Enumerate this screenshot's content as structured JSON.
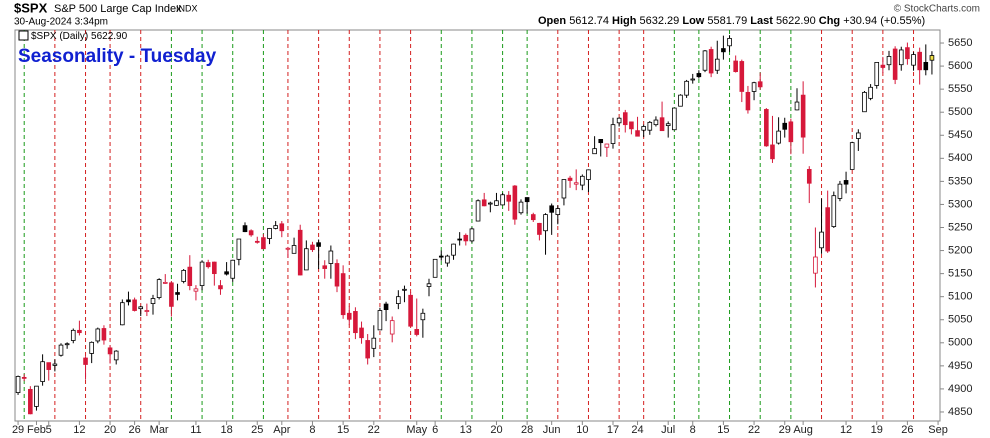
{
  "header": {
    "symbol": "$SPX",
    "name": "S&P 500 Large Cap Index",
    "exchange": "INDX",
    "date": "30-Aug-2024 3:34pm",
    "open_label": "Open",
    "open": "5612.74",
    "high_label": "High",
    "high": "5632.29",
    "low_label": "Low",
    "low": "5581.79",
    "last_label": "Last",
    "last": "5622.90",
    "chg_label": "Chg",
    "chg": "+30.94 (+0.55%)",
    "copyright": "© StockCharts.com"
  },
  "chart_data": {
    "type": "candlestick",
    "title": "Seasonality - Tuesday",
    "legend": "$SPX (Daily)",
    "colors": {
      "up": "#000000",
      "down": "#d6183a",
      "last": "#f2e24a"
    },
    "categories": [
      "Jan 29",
      "Jan 30",
      "Jan 31",
      "Feb 1",
      "Feb 2",
      "Feb 5",
      "Feb 6",
      "Feb 7",
      "Feb 8",
      "Feb 9",
      "Feb 12",
      "Feb 13",
      "Feb 14",
      "Feb 15",
      "Feb 16",
      "Feb 20",
      "Feb 21",
      "Feb 22",
      "Feb 23",
      "Feb 26",
      "Feb 27",
      "Feb 28",
      "Feb 29",
      "Mar 1",
      "Mar 4",
      "Mar 5",
      "Mar 6",
      "Mar 7",
      "Mar 8",
      "Mar 11",
      "Mar 12",
      "Mar 13",
      "Mar 14",
      "Mar 15",
      "Mar 18",
      "Mar 19",
      "Mar 20",
      "Mar 21",
      "Mar 22",
      "Mar 25",
      "Mar 26",
      "Mar 27",
      "Mar 28",
      "Apr 1",
      "Apr 2",
      "Apr 3",
      "Apr 4",
      "Apr 5",
      "Apr 8",
      "Apr 9",
      "Apr 10",
      "Apr 11",
      "Apr 12",
      "Apr 15",
      "Apr 16",
      "Apr 17",
      "Apr 18",
      "Apr 19",
      "Apr 22",
      "Apr 23",
      "Apr 24",
      "Apr 25",
      "Apr 26",
      "Apr 29",
      "Apr 30",
      "May 1",
      "May 2",
      "May 3",
      "May 6",
      "May 7",
      "May 8",
      "May 9",
      "May 10",
      "May 13",
      "May 14",
      "May 15",
      "May 16",
      "May 17",
      "May 20",
      "May 21",
      "May 22",
      "May 23",
      "May 24",
      "May 28",
      "May 29",
      "May 30",
      "May 31",
      "Jun 3",
      "Jun 4",
      "Jun 5",
      "Jun 6",
      "Jun 7",
      "Jun 10",
      "Jun 11",
      "Jun 12",
      "Jun 13",
      "Jun 14",
      "Jun 17",
      "Jun 18",
      "Jun 20",
      "Jun 21",
      "Jun 24",
      "Jun 25",
      "Jun 26",
      "Jun 27",
      "Jun 28",
      "Jul 1",
      "Jul 2",
      "Jul 3",
      "Jul 5",
      "Jul 8",
      "Jul 9",
      "Jul 10",
      "Jul 11",
      "Jul 12",
      "Jul 15",
      "Jul 16",
      "Jul 17",
      "Jul 18",
      "Jul 19",
      "Jul 22",
      "Jul 23",
      "Jul 24",
      "Jul 25",
      "Jul 26",
      "Jul 29",
      "Jul 30",
      "Jul 31",
      "Aug 1",
      "Aug 2",
      "Aug 5",
      "Aug 6",
      "Aug 7",
      "Aug 8",
      "Aug 9",
      "Aug 12",
      "Aug 13",
      "Aug 14",
      "Aug 15",
      "Aug 16",
      "Aug 19",
      "Aug 20",
      "Aug 21",
      "Aug 22",
      "Aug 23",
      "Aug 26",
      "Aug 27",
      "Aug 28",
      "Aug 29",
      "Aug 30"
    ],
    "open": [
      4892,
      4925,
      4899,
      4862,
      4916,
      4957,
      4951,
      4973,
      4996,
      5005,
      5027,
      4967,
      4977,
      5004,
      5031,
      4989,
      4963,
      5039,
      5093,
      5093,
      5074,
      5068,
      5085,
      5098,
      5130,
      5130,
      5109,
      5133,
      5164,
      5112,
      5124,
      5174,
      5175,
      5124,
      5154,
      5140,
      5181,
      5254,
      5243,
      5220,
      5228,
      5226,
      5248,
      5258,
      5204,
      5194,
      5244,
      5158,
      5212,
      5217,
      5167,
      5172,
      5172,
      5150,
      5064,
      5068,
      5032,
      5005,
      4988,
      5028,
      5084,
      5019,
      5085,
      5114,
      5103,
      5029,
      5050,
      5122,
      5142,
      5188,
      5173,
      5190,
      5225,
      5233,
      5221,
      5264,
      5310,
      5303,
      5298,
      5299,
      5320,
      5340,
      5282,
      5315,
      5278,
      5259,
      5243,
      5297,
      5278,
      5314,
      5357,
      5344,
      5342,
      5354,
      5410,
      5441,
      5424,
      5432,
      5477,
      5499,
      5479,
      5460,
      5461,
      5461,
      5473,
      5488,
      5471,
      5462,
      5513,
      5537,
      5572,
      5584,
      5591,
      5636,
      5591,
      5638,
      5644,
      5611,
      5610,
      5543,
      5545,
      5566,
      5506,
      5429,
      5433,
      5476,
      5479,
      5505,
      5537,
      5376,
      5151,
      5206,
      5293,
      5252,
      5313,
      5352,
      5376,
      5443,
      5501,
      5530,
      5558,
      5602,
      5603,
      5637,
      5603,
      5640,
      5602,
      5630,
      5608,
      5612.74
    ],
    "high": [
      4929,
      4932,
      4906,
      4906,
      4975,
      4957,
      4964,
      4999,
      5001,
      5031,
      5048,
      4971,
      5003,
      5033,
      5038,
      4994,
      4984,
      5094,
      5111,
      5098,
      5080,
      5085,
      5104,
      5140,
      5149,
      5134,
      5128,
      5160,
      5190,
      5125,
      5179,
      5180,
      5176,
      5136,
      5175,
      5180,
      5225,
      5261,
      5246,
      5230,
      5236,
      5249,
      5264,
      5264,
      5208,
      5228,
      5256,
      5222,
      5219,
      5224,
      5179,
      5211,
      5181,
      5168,
      5079,
      5077,
      5046,
      5019,
      5038,
      5076,
      5089,
      5057,
      5114,
      5124,
      5110,
      5096,
      5074,
      5139,
      5181,
      5200,
      5191,
      5215,
      5240,
      5237,
      5250,
      5311,
      5325,
      5306,
      5325,
      5325,
      5329,
      5342,
      5311,
      5315,
      5282,
      5260,
      5281,
      5302,
      5298,
      5354,
      5362,
      5376,
      5365,
      5376,
      5448,
      5441,
      5432,
      5488,
      5489,
      5505,
      5479,
      5490,
      5473,
      5481,
      5491,
      5523,
      5480,
      5509,
      5539,
      5570,
      5583,
      5591,
      5635,
      5642,
      5655,
      5666,
      5667,
      5623,
      5614,
      5557,
      5566,
      5586,
      5509,
      5492,
      5489,
      5488,
      5486,
      5552,
      5567,
      5383,
      5250,
      5313,
      5330,
      5328,
      5351,
      5371,
      5436,
      5463,
      5546,
      5561,
      5608,
      5620,
      5633,
      5643,
      5642,
      5651,
      5631,
      5640,
      5647,
      5632.29
    ],
    "low": [
      4887,
      4917,
      4845,
      4853,
      4907,
      4918,
      4938,
      4970,
      4987,
      4999,
      5016,
      4920,
      4956,
      4999,
      4996,
      4955,
      4953,
      5038,
      5081,
      5068,
      5058,
      5058,
      5061,
      5094,
      5128,
      5057,
      5092,
      5129,
      5114,
      5092,
      5114,
      5161,
      5124,
      5104,
      5146,
      5132,
      5168,
      5240,
      5230,
      5215,
      5203,
      5214,
      5246,
      5229,
      5184,
      5194,
      5146,
      5158,
      5197,
      5160,
      5139,
      5139,
      5110,
      5052,
      5039,
      5008,
      4998,
      4953,
      4969,
      5028,
      5047,
      5001,
      5073,
      5088,
      5036,
      5014,
      5011,
      5101,
      5142,
      5178,
      5165,
      5180,
      5211,
      5211,
      5217,
      5263,
      5296,
      5283,
      5297,
      5298,
      5286,
      5256,
      5278,
      5280,
      5262,
      5222,
      5191,
      5234,
      5257,
      5298,
      5336,
      5331,
      5331,
      5327,
      5410,
      5404,
      5403,
      5421,
      5469,
      5456,
      5452,
      5448,
      5446,
      5451,
      5469,
      5460,
      5445,
      5461,
      5513,
      5531,
      5562,
      5573,
      5587,
      5576,
      5583,
      5614,
      5631,
      5586,
      5522,
      5497,
      5526,
      5549,
      5425,
      5390,
      5430,
      5445,
      5409,
      5504,
      5410,
      5303,
      5120,
      5193,
      5195,
      5249,
      5307,
      5324,
      5376,
      5416,
      5501,
      5526,
      5551,
      5585,
      5591,
      5561,
      5590,
      5603,
      5590,
      5560,
      5580,
      5581.79
    ],
    "close": [
      4927,
      4924,
      4846,
      4906,
      4959,
      4942,
      4954,
      4995,
      4998,
      5027,
      5022,
      4953,
      5001,
      5030,
      5006,
      4976,
      4982,
      5087,
      5089,
      5070,
      5078,
      5070,
      5096,
      5137,
      5131,
      5079,
      5105,
      5157,
      5124,
      5117,
      5175,
      5165,
      5150,
      5117,
      5149,
      5179,
      5225,
      5241,
      5234,
      5218,
      5204,
      5248,
      5254,
      5243,
      5205,
      5211,
      5147,
      5204,
      5202,
      5209,
      5161,
      5199,
      5123,
      5061,
      5051,
      5022,
      5011,
      4967,
      5010,
      5070,
      5072,
      5048,
      5100,
      5116,
      5036,
      5018,
      5064,
      5128,
      5181,
      5187,
      5188,
      5214,
      5223,
      5221,
      5247,
      5308,
      5297,
      5303,
      5308,
      5321,
      5307,
      5268,
      5305,
      5306,
      5267,
      5235,
      5278,
      5283,
      5291,
      5354,
      5352,
      5347,
      5361,
      5375,
      5421,
      5434,
      5431,
      5473,
      5487,
      5473,
      5464,
      5448,
      5469,
      5478,
      5483,
      5460,
      5475,
      5509,
      5537,
      5567,
      5572,
      5577,
      5633,
      5585,
      5615,
      5631,
      5660,
      5588,
      5545,
      5505,
      5564,
      5555,
      5427,
      5399,
      5459,
      5463,
      5436,
      5522,
      5446,
      5346,
      5186,
      5240,
      5199,
      5319,
      5344,
      5344,
      5434,
      5455,
      5543,
      5554,
      5608,
      5597,
      5621,
      5571,
      5635,
      5616,
      5625,
      5592,
      5592,
      5622.9
    ],
    "ylim": [
      4830,
      5675
    ],
    "yticks": [
      4850,
      4900,
      4950,
      5000,
      5050,
      5100,
      5150,
      5200,
      5250,
      5300,
      5350,
      5400,
      5450,
      5500,
      5550,
      5600,
      5650
    ],
    "xticks": [
      {
        "value": "Jan 29",
        "label": "29"
      },
      {
        "value": "Feb 1",
        "label": "Feb"
      },
      {
        "value": "Feb 5",
        "label": "5"
      },
      {
        "value": "Feb 12",
        "label": "12"
      },
      {
        "value": "Feb 20",
        "label": "20"
      },
      {
        "value": "Feb 26",
        "label": "26"
      },
      {
        "value": "Mar 1",
        "label": "Mar"
      },
      {
        "value": "Mar 11",
        "label": "11"
      },
      {
        "value": "Mar 18",
        "label": "18"
      },
      {
        "value": "Mar 25",
        "label": "25"
      },
      {
        "value": "Apr 1",
        "label": "Apr"
      },
      {
        "value": "Apr 8",
        "label": "8"
      },
      {
        "value": "Apr 15",
        "label": "15"
      },
      {
        "value": "Apr 22",
        "label": "22"
      },
      {
        "value": "May 1",
        "label": "May"
      },
      {
        "value": "May 6",
        "label": "6"
      },
      {
        "value": "May 13",
        "label": "13"
      },
      {
        "value": "May 20",
        "label": "20"
      },
      {
        "value": "May 28",
        "label": "28"
      },
      {
        "value": "Jun 3",
        "label": "Jun"
      },
      {
        "value": "Jun 10",
        "label": "10"
      },
      {
        "value": "Jun 17",
        "label": "17"
      },
      {
        "value": "Jun 24",
        "label": "24"
      },
      {
        "value": "Jul 1",
        "label": "Jul"
      },
      {
        "value": "Jul 8",
        "label": "8"
      },
      {
        "value": "Jul 15",
        "label": "15"
      },
      {
        "value": "Jul 22",
        "label": "22"
      },
      {
        "value": "Jul 29",
        "label": "29"
      },
      {
        "value": "Aug 1",
        "label": "Aug"
      },
      {
        "value": "Aug 12",
        "label": "12"
      },
      {
        "value": "Aug 19",
        "label": "19"
      },
      {
        "value": "Aug 26",
        "label": "26"
      },
      "Sep"
    ]
  }
}
